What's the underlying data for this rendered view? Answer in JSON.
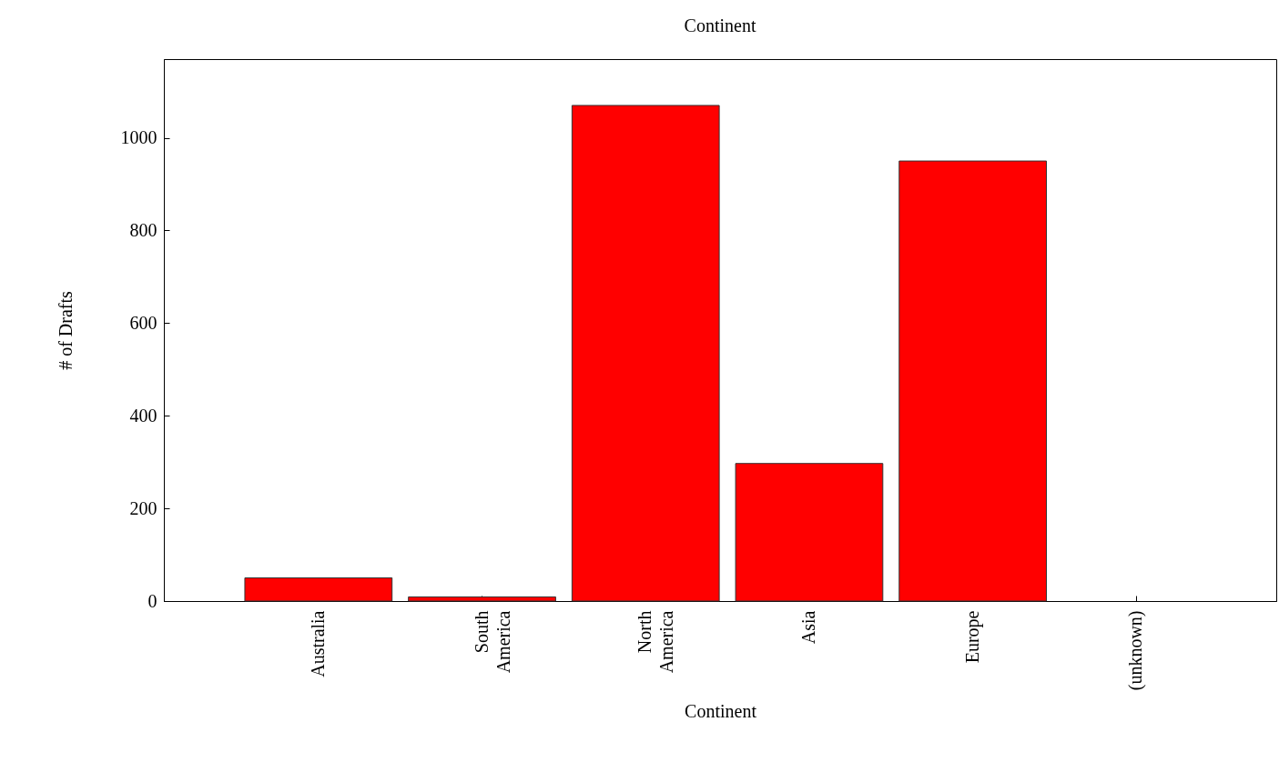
{
  "chart_data": {
    "type": "bar",
    "title": "Continent",
    "xlabel": "Continent",
    "ylabel": "# of Drafts",
    "categories": [
      "Australia",
      "South America",
      "North America",
      "Asia",
      "Europe",
      "(unknown)"
    ],
    "values": [
      50,
      9,
      1070,
      297,
      950,
      0
    ],
    "color": "#ff0000",
    "ylim": [
      0,
      1170
    ],
    "yticks": [
      0,
      200,
      400,
      600,
      800,
      1000
    ],
    "grid": false
  }
}
